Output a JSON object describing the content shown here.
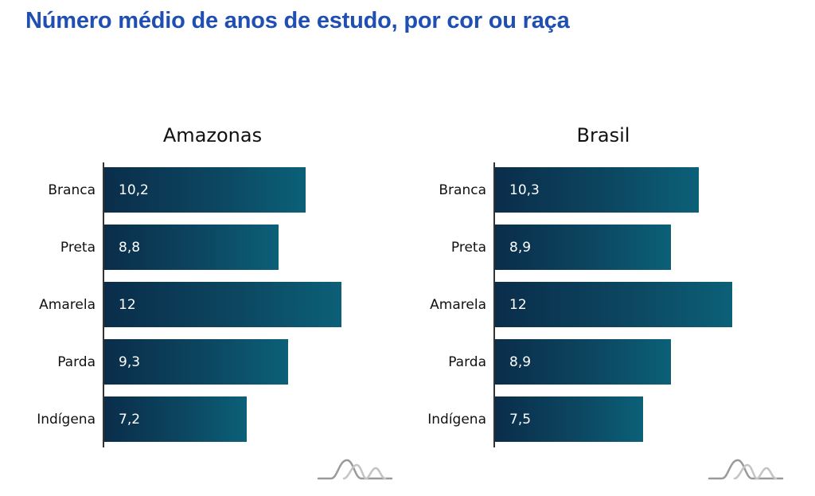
{
  "title": "Número médio de anos de estudo, por cor ou raça",
  "colors": {
    "title": "#1f4fb2",
    "bar_start": "#0a2d4a",
    "bar_end": "#0b6078",
    "bar_text": "#ffffff",
    "logo": "#9a9a9a"
  },
  "chart_data": [
    {
      "type": "bar",
      "orientation": "horizontal",
      "title": "Amazonas",
      "categories": [
        "Branca",
        "Preta",
        "Amarela",
        "Parda",
        "Indígena"
      ],
      "values": [
        10.2,
        8.8,
        12,
        9.3,
        7.2
      ],
      "value_labels": [
        "10,2",
        "8,8",
        "12",
        "9,3",
        "7,2"
      ],
      "xlim": [
        0,
        12
      ],
      "xlabel": "",
      "ylabel": "",
      "grid": false
    },
    {
      "type": "bar",
      "orientation": "horizontal",
      "title": "Brasil",
      "categories": [
        "Branca",
        "Preta",
        "Amarela",
        "Parda",
        "Indígena"
      ],
      "values": [
        10.3,
        8.9,
        12,
        8.9,
        7.5
      ],
      "value_labels": [
        "10,3",
        "8,9",
        "12",
        "8,9",
        "7,5"
      ],
      "xlim": [
        0,
        12
      ],
      "xlabel": "",
      "ylabel": "",
      "grid": false
    }
  ],
  "logo": {
    "icon": "wave-logo-icon"
  }
}
